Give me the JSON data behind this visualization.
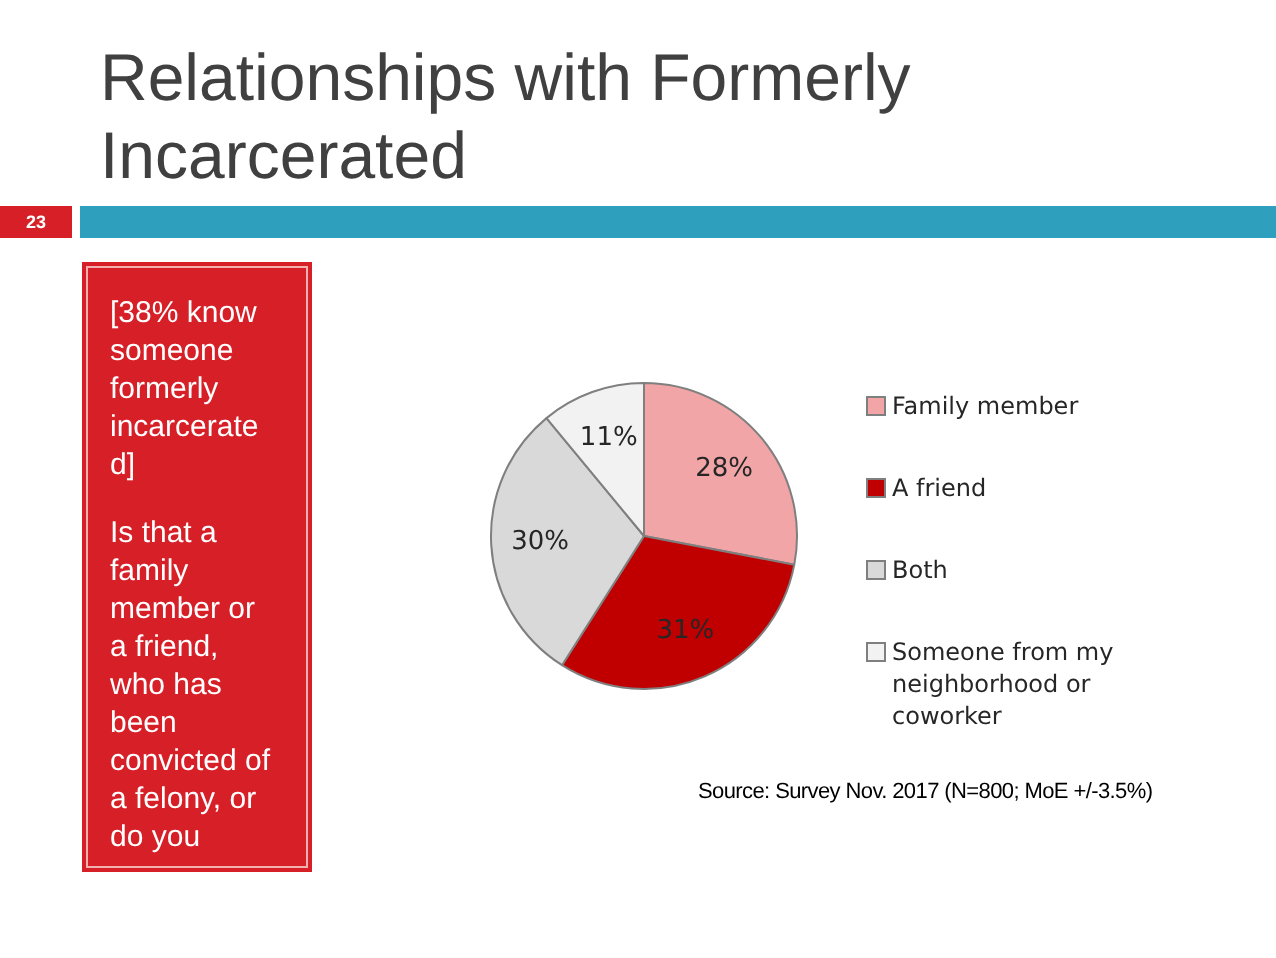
{
  "chart_data": {
    "type": "pie",
    "title": "Relationships with Formerly Incarcerated",
    "categories": [
      "Family member",
      "A friend",
      "Both",
      "Someone from my neighborhood or coworker"
    ],
    "values": [
      28,
      31,
      30,
      11
    ],
    "colors": [
      "#f2a5a7",
      "#c00000",
      "#d9d9d9",
      "#f2f2f2"
    ],
    "value_labels": [
      "28%",
      "31%",
      "30%",
      "11%"
    ],
    "legend": "right",
    "annotations": [
      "23",
      "[38% know someone formerly incarcerated]",
      "Is that a family member or a friend, who has been convicted of a felony, or do you",
      "Source: Survey Nov. 2017 (N=800; MoE +/-3.5%)"
    ]
  }
}
